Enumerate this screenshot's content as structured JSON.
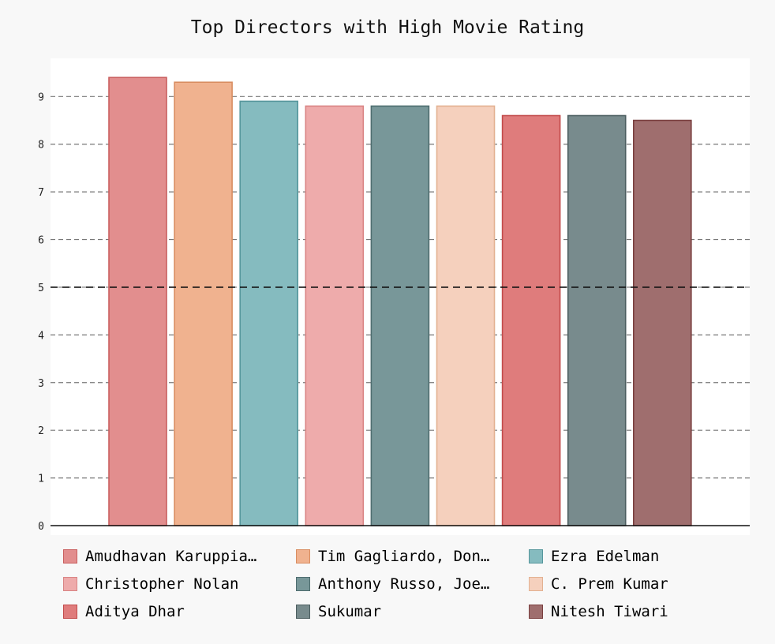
{
  "chart_data": {
    "type": "bar",
    "title": "Top Directors with High Movie Rating",
    "xlabel": "",
    "ylabel": "",
    "ylim": [
      0,
      9.8
    ],
    "yticks": [
      0,
      1,
      2,
      3,
      4,
      5,
      6,
      7,
      8,
      9
    ],
    "reference_line": 5,
    "grid": true,
    "legend_position": "bottom",
    "series": [
      {
        "name": "Amudhavan Karuppia…",
        "value": 9.4,
        "color": "#e28e8e",
        "stroke": "#c95e5e"
      },
      {
        "name": "Tim Gagliardo, Don…",
        "value": 9.3,
        "color": "#f0b28f",
        "stroke": "#d98d61"
      },
      {
        "name": "Ezra Edelman",
        "value": 8.9,
        "color": "#85bbbf",
        "stroke": "#56979c"
      },
      {
        "name": "Christopher Nolan",
        "value": 8.8,
        "color": "#eeabab",
        "stroke": "#d98484"
      },
      {
        "name": "Anthony Russo, Joe…",
        "value": 8.8,
        "color": "#789799",
        "stroke": "#4e6d6f"
      },
      {
        "name": "C. Prem Kumar",
        "value": 8.8,
        "color": "#f5d0bd",
        "stroke": "#e3b191"
      },
      {
        "name": "Aditya Dhar",
        "value": 8.6,
        "color": "#df7c7c",
        "stroke": "#c24a4a"
      },
      {
        "name": "Sukumar",
        "value": 8.6,
        "color": "#788b8d",
        "stroke": "#4c5e60"
      },
      {
        "name": "Nitesh Tiwari",
        "value": 8.5,
        "color": "#9f6e6e",
        "stroke": "#7a3f3f"
      }
    ]
  }
}
